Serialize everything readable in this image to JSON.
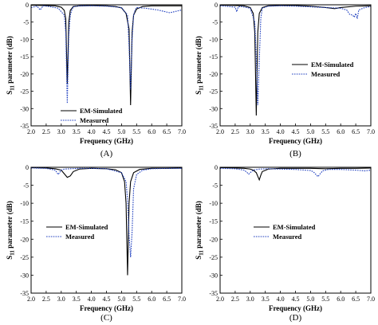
{
  "chart_data": [
    {
      "type": "line",
      "panel_label": "(A)",
      "xlabel": "Frequency (GHz)",
      "ylabel": "S11 parameter (dB)",
      "xlim": [
        2.0,
        7.0
      ],
      "ylim": [
        -35,
        0
      ],
      "xticks": [
        "2.0",
        "2.5",
        "3.0",
        "3.5",
        "4.0",
        "4.5",
        "5.0",
        "5.5",
        "6.0",
        "6.5",
        "7.0"
      ],
      "yticks": [
        "0",
        "-5",
        "-10",
        "-15",
        "-20",
        "-25",
        "-30",
        "-35"
      ],
      "legend_position": "lower-center",
      "series": [
        {
          "name": "EM-Simulated",
          "style": "solid",
          "color": "#000000",
          "x": [
            2.0,
            2.8,
            3.0,
            3.1,
            3.15,
            3.2,
            3.25,
            3.3,
            3.4,
            3.6,
            4.0,
            4.5,
            4.8,
            5.0,
            5.15,
            5.25,
            5.3,
            5.35,
            5.4,
            5.5,
            5.7,
            6.0,
            6.5,
            7.0
          ],
          "y": [
            -0.1,
            -0.3,
            -0.7,
            -1.6,
            -4,
            -23,
            -5,
            -1.6,
            -0.5,
            -0.3,
            -0.2,
            -0.3,
            -0.5,
            -0.9,
            -2.5,
            -7,
            -29,
            -8,
            -3,
            -1.2,
            -0.5,
            -0.3,
            -0.3,
            -0.3
          ]
        },
        {
          "name": "Measured",
          "style": "dotted",
          "color": "#1f3fbf",
          "x": [
            2.0,
            2.2,
            2.3,
            2.4,
            2.6,
            2.9,
            3.1,
            3.15,
            3.2,
            3.25,
            3.3,
            3.35,
            3.4,
            3.6,
            4.0,
            4.5,
            5.0,
            5.2,
            5.25,
            5.3,
            5.35,
            5.4,
            5.45,
            5.5,
            5.8,
            6.2,
            6.6,
            7.0
          ],
          "y": [
            -0.8,
            -0.4,
            -1.5,
            -0.3,
            -0.5,
            -1,
            -3,
            -8,
            -28.5,
            -9,
            -3,
            -1.5,
            -0.6,
            -0.3,
            -0.3,
            -0.4,
            -0.8,
            -3,
            -12,
            -24.5,
            -10,
            -3,
            -1.5,
            -0.8,
            -1,
            -1.5,
            -2.3,
            -1.5
          ]
        }
      ]
    },
    {
      "type": "line",
      "panel_label": "(B)",
      "xlabel": "Frequency (GHz)",
      "ylabel": "S11 parameter (dB)",
      "xlim": [
        2.0,
        7.0
      ],
      "ylim": [
        -35,
        0
      ],
      "xticks": [
        "2.0",
        "2.5",
        "3.0",
        "3.5",
        "4.0",
        "4.5",
        "5.0",
        "5.5",
        "6.0",
        "6.5",
        "7.0"
      ],
      "yticks": [
        "0",
        "-5",
        "-10",
        "-15",
        "-20",
        "-25",
        "-30",
        "-35"
      ],
      "legend_position": "right",
      "series": [
        {
          "name": "EM-Simulated",
          "style": "solid",
          "color": "#000000",
          "x": [
            2.0,
            2.5,
            2.8,
            3.0,
            3.1,
            3.15,
            3.2,
            3.25,
            3.3,
            3.4,
            3.6,
            4.0,
            4.5,
            5.0,
            5.5,
            5.8,
            6.0,
            6.5,
            7.0
          ],
          "y": [
            -0.1,
            -0.2,
            -0.3,
            -0.8,
            -2.5,
            -8,
            -32,
            -8,
            -2.5,
            -0.8,
            -0.3,
            -0.2,
            -0.2,
            -0.4,
            -0.8,
            -1.1,
            -0.8,
            -0.4,
            -0.3
          ]
        },
        {
          "name": "Measured",
          "style": "dotted",
          "color": "#1f3fbf",
          "x": [
            2.0,
            2.3,
            2.5,
            2.55,
            2.6,
            2.7,
            3.0,
            3.15,
            3.2,
            3.25,
            3.3,
            3.35,
            3.4,
            3.6,
            4.0,
            4.5,
            5.0,
            5.5,
            6.0,
            6.2,
            6.3,
            6.4,
            6.45,
            6.5,
            6.55,
            6.6,
            6.8,
            7.0
          ],
          "y": [
            -0.3,
            -0.5,
            -0.7,
            -2,
            -0.6,
            -0.5,
            -1,
            -5,
            -15,
            -29,
            -16,
            -4,
            -1,
            -0.4,
            -0.3,
            -0.4,
            -0.6,
            -0.8,
            -1,
            -1.5,
            -2.8,
            -3,
            -3.6,
            -2.5,
            -4,
            -1.5,
            -0.8,
            -0.5
          ]
        }
      ]
    },
    {
      "type": "line",
      "panel_label": "(C)",
      "xlabel": "Frequency (GHz)",
      "ylabel": "S11 parameter (dB)",
      "xlim": [
        2.0,
        7.0
      ],
      "ylim": [
        -35,
        0
      ],
      "xticks": [
        "2.0",
        "2.5",
        "3.0",
        "3.5",
        "4.0",
        "4.5",
        "5.0",
        "5.5",
        "6.0",
        "6.5",
        "7.0"
      ],
      "yticks": [
        "0",
        "-5",
        "-10",
        "-15",
        "-20",
        "-25",
        "-30",
        "-35"
      ],
      "legend_position": "middle-left",
      "series": [
        {
          "name": "EM-Simulated",
          "style": "solid",
          "color": "#000000",
          "x": [
            2.0,
            2.5,
            2.8,
            3.0,
            3.1,
            3.2,
            3.3,
            3.4,
            3.6,
            4.0,
            4.5,
            4.8,
            5.0,
            5.1,
            5.15,
            5.2,
            5.25,
            5.3,
            5.4,
            5.6,
            6.0,
            6.5,
            7.0
          ],
          "y": [
            -0.1,
            -0.2,
            -0.4,
            -0.8,
            -1.8,
            -2.8,
            -2.4,
            -1.2,
            -0.5,
            -0.3,
            -0.4,
            -0.7,
            -1.5,
            -4,
            -10,
            -30,
            -10,
            -4,
            -1.5,
            -0.6,
            -0.3,
            -0.3,
            -0.2
          ]
        },
        {
          "name": "Measured",
          "style": "dotted",
          "color": "#1f3fbf",
          "x": [
            2.0,
            2.5,
            2.8,
            2.9,
            3.0,
            3.1,
            3.3,
            3.6,
            4.0,
            4.5,
            5.0,
            5.15,
            5.2,
            5.25,
            5.3,
            5.35,
            5.4,
            5.5,
            5.7,
            6.0,
            6.5,
            7.0
          ],
          "y": [
            -0.2,
            -0.3,
            -0.8,
            -2,
            -0.8,
            -0.5,
            -0.4,
            -0.3,
            -0.3,
            -0.4,
            -1.5,
            -4,
            -9,
            -19,
            -25,
            -18,
            -6,
            -2,
            -0.8,
            -0.4,
            -0.3,
            -0.3
          ]
        }
      ]
    },
    {
      "type": "line",
      "panel_label": "(D)",
      "xlabel": "Frequency (GHz)",
      "ylabel": "S11 parameter (dB)",
      "xlim": [
        2.0,
        7.0
      ],
      "ylim": [
        -35,
        0
      ],
      "xticks": [
        "2.0",
        "2.5",
        "3.0",
        "3.5",
        "4.0",
        "4.5",
        "5.0",
        "5.5",
        "6.0",
        "6.5",
        "7.0"
      ],
      "yticks": [
        "0",
        "-5",
        "-10",
        "-15",
        "-20",
        "-25",
        "-30",
        "-35"
      ],
      "legend_position": "middle-left",
      "series": [
        {
          "name": "EM-Simulated",
          "style": "solid",
          "color": "#000000",
          "x": [
            2.0,
            2.5,
            2.8,
            3.0,
            3.1,
            3.2,
            3.25,
            3.3,
            3.35,
            3.4,
            3.6,
            4.0,
            4.5,
            5.0,
            5.5,
            6.0,
            6.5,
            7.0
          ],
          "y": [
            -0.1,
            -0.2,
            -0.3,
            -0.5,
            -0.8,
            -1.5,
            -2.5,
            -3.5,
            -2.2,
            -1.2,
            -0.5,
            -0.3,
            -0.3,
            -0.3,
            -0.4,
            -0.3,
            -0.3,
            -0.2
          ]
        },
        {
          "name": "Measured",
          "style": "dotted",
          "color": "#1f3fbf",
          "x": [
            2.0,
            2.5,
            2.8,
            2.9,
            2.95,
            3.0,
            3.1,
            3.3,
            3.6,
            4.0,
            4.5,
            5.0,
            5.1,
            5.2,
            5.25,
            5.3,
            5.4,
            5.6,
            6.0,
            6.5,
            6.8,
            7.0
          ],
          "y": [
            -0.3,
            -0.4,
            -0.8,
            -1.5,
            -1.9,
            -1.5,
            -0.8,
            -0.5,
            -0.4,
            -0.5,
            -0.6,
            -0.9,
            -1.3,
            -2.2,
            -2.6,
            -2,
            -1,
            -0.6,
            -0.6,
            -0.8,
            -1,
            -0.8
          ]
        }
      ]
    }
  ]
}
